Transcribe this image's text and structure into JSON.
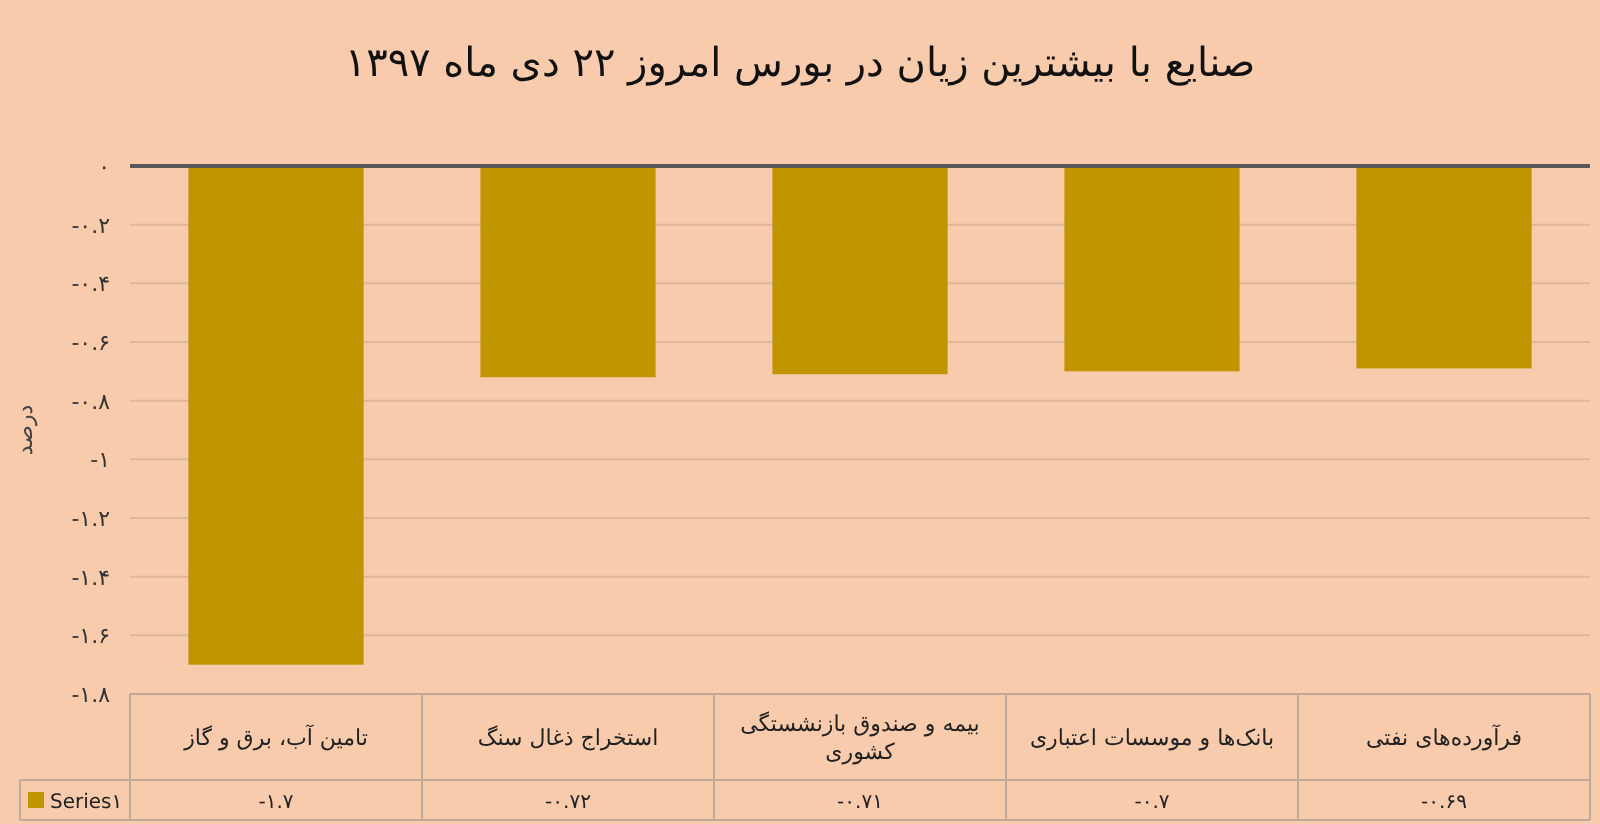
{
  "chart_data": {
    "type": "bar",
    "title": "صنایع با بیشترین زیان در بورس امروز ۲۲ دی ماه ۱۳۹۷",
    "ylabel": "درصد",
    "categories": [
      "تامین آب، برق و گاز",
      "استخراج ذغال سنگ",
      "بیمه و صندوق بازنشستگی کشوری",
      "بانک‌ها و موسسات اعتباری",
      "فرآورده‌های نفتی"
    ],
    "series": [
      {
        "name": "Series۱",
        "color": "#bf9500",
        "values": [
          -1.7,
          -0.72,
          -0.71,
          -0.7,
          -0.69
        ],
        "value_labels": [
          "-۱.۷",
          "-۰.۷۲",
          "-۰.۷۱",
          "-۰.۷",
          "-۰.۶۹"
        ]
      }
    ],
    "ylim": [
      -1.8,
      0
    ],
    "yticks": [
      {
        "value": 0,
        "label": "۰"
      },
      {
        "value": -0.2,
        "label": "-۰.۲"
      },
      {
        "value": -0.4,
        "label": "-۰.۴"
      },
      {
        "value": -0.6,
        "label": "-۰.۶"
      },
      {
        "value": -0.8,
        "label": "-۰.۸"
      },
      {
        "value": -1,
        "label": "-۱"
      },
      {
        "value": -1.2,
        "label": "-۱.۲"
      },
      {
        "value": -1.4,
        "label": "-۱.۴"
      },
      {
        "value": -1.6,
        "label": "-۱.۶"
      },
      {
        "value": -1.8,
        "label": "-۱.۸"
      }
    ],
    "grid": "y",
    "legend": "bottom"
  }
}
